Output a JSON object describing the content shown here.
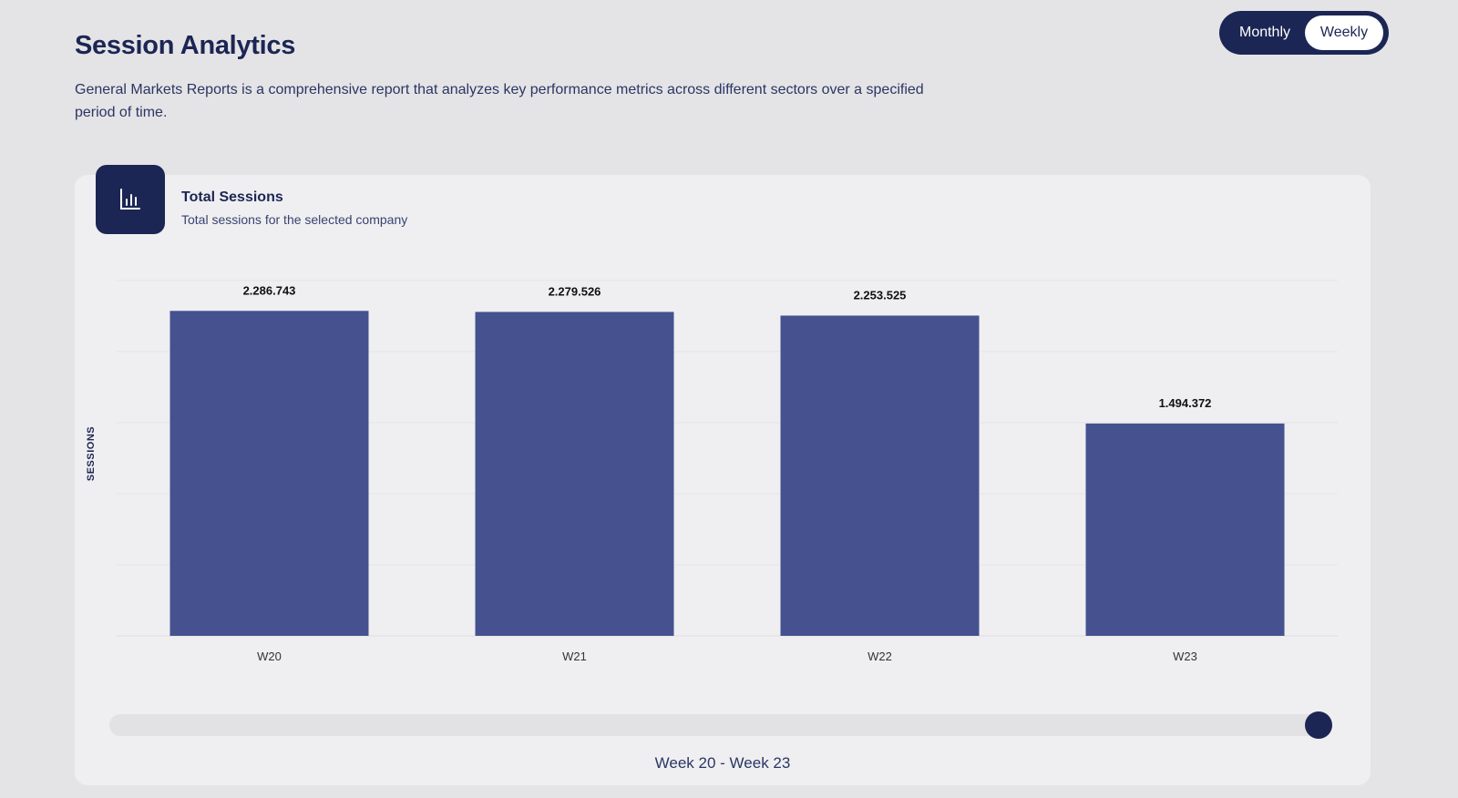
{
  "header": {
    "title": "Session Analytics",
    "description": "General Markets Reports is a comprehensive report that analyzes key performance metrics across different sectors over a specified period of time."
  },
  "toggle": {
    "options": [
      "Monthly",
      "Weekly"
    ],
    "selected": "Weekly"
  },
  "card": {
    "icon": "bar-chart-icon",
    "title": "Total Sessions",
    "subtitle": "Total sessions for the selected company"
  },
  "chart_data": {
    "type": "bar",
    "categories": [
      "W20",
      "W21",
      "W22",
      "W23"
    ],
    "values": [
      2286743,
      2279526,
      2253525,
      1494372
    ],
    "value_labels": [
      "2.286.743",
      "2.279.526",
      "2.253.525",
      "1.494.372"
    ],
    "ylabel": "SESSIONS",
    "ylim": [
      0,
      2500000
    ],
    "grid": true,
    "bar_color": "#45528f"
  },
  "range": {
    "label": "Week 20 - Week 23",
    "position": 1.0
  },
  "colors": {
    "primary": "#1c2654",
    "bar": "#45528f",
    "background": "#e4e4e6",
    "card": "#efeff1"
  }
}
